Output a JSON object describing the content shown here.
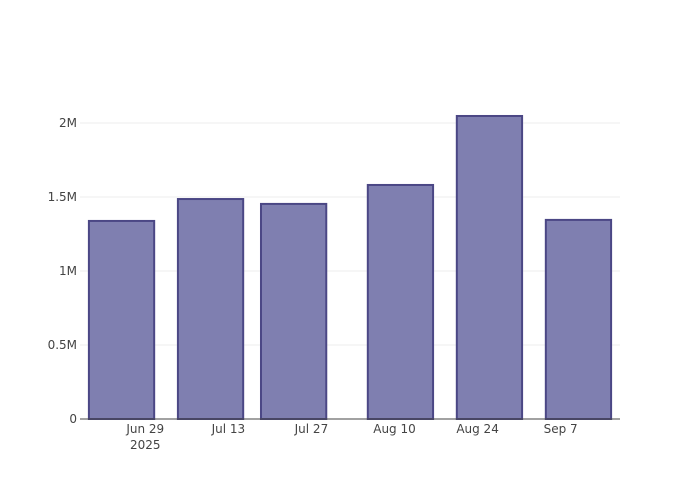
{
  "chart_data": {
    "type": "bar",
    "x": [
      "2025-06-25",
      "2025-07-10",
      "2025-07-24",
      "2025-08-11",
      "2025-08-26",
      "2025-09-10"
    ],
    "values": [
      1338000,
      1486000,
      1453000,
      1581000,
      2047000,
      1345000
    ],
    "color": "#7f7fb0",
    "edge_color": "#4b4785",
    "xlim": [
      "2025-06-18",
      "2025-09-17"
    ],
    "xticks": [
      {
        "value": "2025-06-29",
        "label": "Jun 29\n2025"
      },
      {
        "value": "2025-07-13",
        "label": "Jul 13"
      },
      {
        "value": "2025-07-27",
        "label": "Jul 27"
      },
      {
        "value": "2025-08-10",
        "label": "Aug 10"
      },
      {
        "value": "2025-08-24",
        "label": "Aug 24"
      },
      {
        "value": "2025-09-07",
        "label": "Sep 7"
      }
    ],
    "ylim": [
      0,
      2155000
    ],
    "yticks": [
      0,
      {
        "value": 500000,
        "label": "0.5M"
      },
      {
        "value": 1000000,
        "label": "1M"
      },
      {
        "value": 1500000,
        "label": "1.5M"
      },
      {
        "value": 2000000,
        "label": "2M"
      }
    ],
    "grid": true
  }
}
